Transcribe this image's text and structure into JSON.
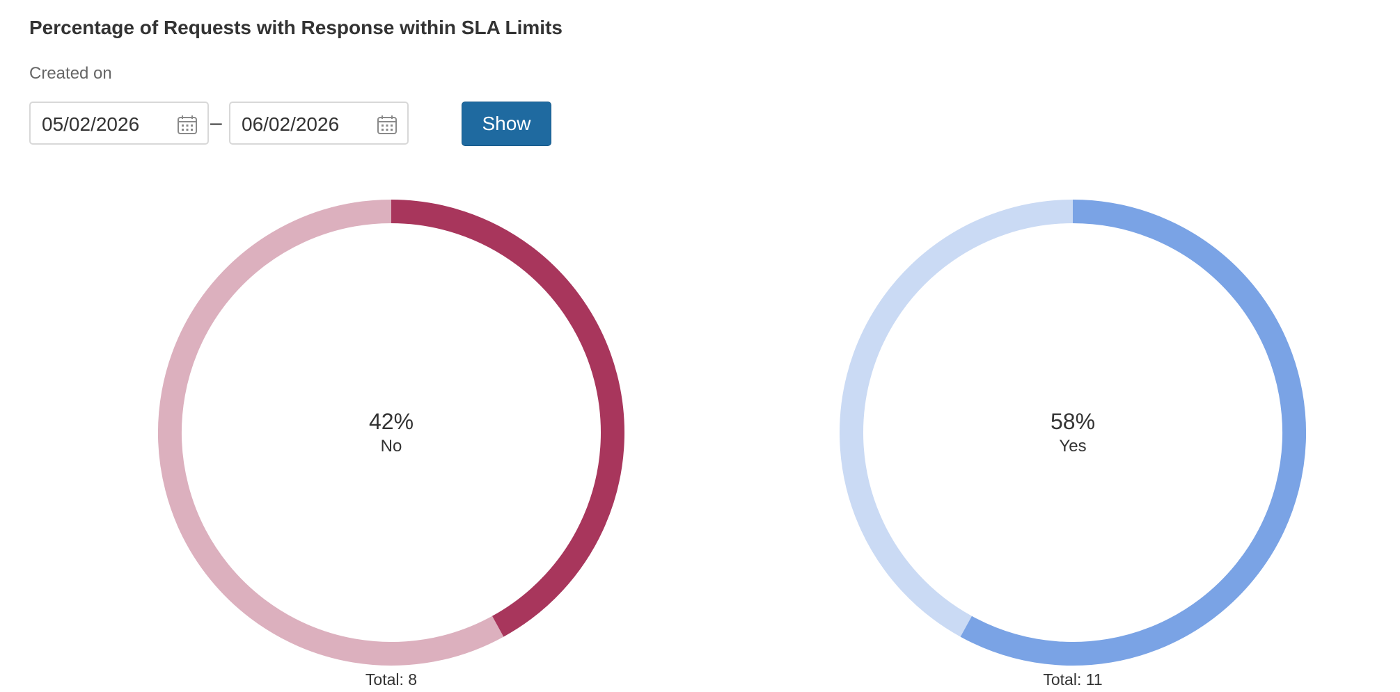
{
  "title": "Percentage of Requests with Response within SLA Limits",
  "filter": {
    "created_label": "Created on",
    "date_from": "05/02/2026",
    "date_to": "06/02/2026",
    "separator": "–",
    "show_label": "Show"
  },
  "icons": {
    "date_from_icon": "calendar-icon",
    "date_to_icon": "calendar-icon"
  },
  "chart_data": [
    {
      "type": "pie",
      "style": "donut",
      "highlight_label": "No",
      "highlight_percent_text": "42%",
      "highlight_fraction": 0.42,
      "total_text": "Total: 8",
      "colors": {
        "highlight": "#a8365c",
        "rest": "#dcb0be"
      }
    },
    {
      "type": "pie",
      "style": "donut",
      "highlight_label": "Yes",
      "highlight_percent_text": "58%",
      "highlight_fraction": 0.58,
      "total_text": "Total: 11",
      "colors": {
        "highlight": "#7aa3e5",
        "rest": "#cadaf4"
      }
    }
  ]
}
